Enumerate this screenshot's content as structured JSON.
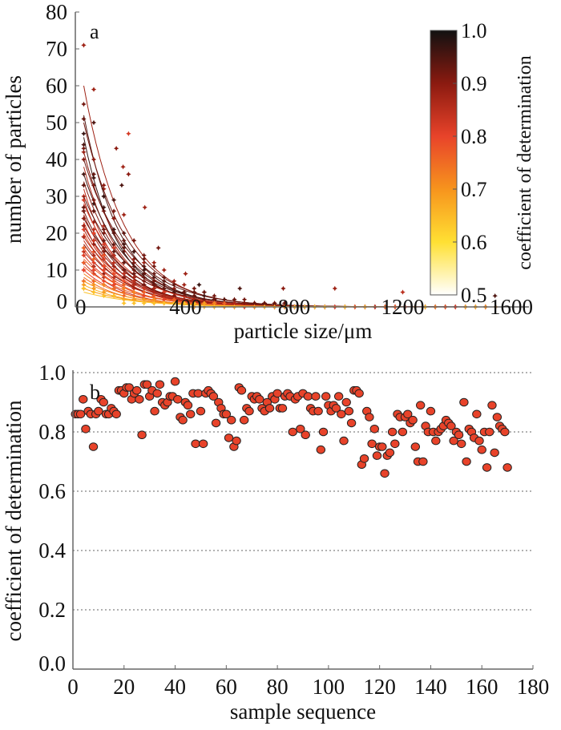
{
  "chart_data": [
    {
      "panel": "a",
      "type": "scatter",
      "xlabel": "particle size/μm",
      "ylabel": "number of particles",
      "xlim": [
        0,
        1600
      ],
      "ylim": [
        0,
        80
      ],
      "xticks": [
        "0",
        "400",
        "800",
        "1200",
        "1600"
      ],
      "yticks": [
        "0",
        "10",
        "20",
        "30",
        "40",
        "50",
        "60",
        "70",
        "80"
      ],
      "grid": false,
      "colorbar": {
        "label": "coefficient of determination",
        "range": [
          0.5,
          1.0
        ],
        "ticks": [
          "0.5",
          "0.6",
          "0.7",
          "0.8",
          "0.9",
          "1.0"
        ],
        "colors": [
          "#ffffff",
          "#ffe033",
          "#f7941d",
          "#e8432a",
          "#8b1a10",
          "#111111"
        ],
        "placement": "top-right"
      },
      "fitted_curves": [
        {
          "a": 60,
          "decay": 150,
          "r2": 0.88
        },
        {
          "a": 52,
          "decay": 140,
          "r2": 0.95
        },
        {
          "a": 50,
          "decay": 160,
          "r2": 0.92
        },
        {
          "a": 46,
          "decay": 130,
          "r2": 0.97
        },
        {
          "a": 42,
          "decay": 150,
          "r2": 0.9
        },
        {
          "a": 40,
          "decay": 170,
          "r2": 0.93
        },
        {
          "a": 38,
          "decay": 140,
          "r2": 0.86
        },
        {
          "a": 36,
          "decay": 160,
          "r2": 0.96
        },
        {
          "a": 34,
          "decay": 150,
          "r2": 0.91
        },
        {
          "a": 32,
          "decay": 130,
          "r2": 0.84
        },
        {
          "a": 30,
          "decay": 170,
          "r2": 0.94
        },
        {
          "a": 29,
          "decay": 140,
          "r2": 0.89
        },
        {
          "a": 28,
          "decay": 160,
          "r2": 0.82
        },
        {
          "a": 26,
          "decay": 150,
          "r2": 0.92
        },
        {
          "a": 25,
          "decay": 140,
          "r2": 0.87
        },
        {
          "a": 24,
          "decay": 180,
          "r2": 0.93
        },
        {
          "a": 23,
          "decay": 130,
          "r2": 0.8
        },
        {
          "a": 22,
          "decay": 160,
          "r2": 0.9
        },
        {
          "a": 21,
          "decay": 150,
          "r2": 0.85
        },
        {
          "a": 20,
          "decay": 140,
          "r2": 0.78
        },
        {
          "a": 19,
          "decay": 170,
          "r2": 0.88
        },
        {
          "a": 18,
          "decay": 150,
          "r2": 0.83
        },
        {
          "a": 17,
          "decay": 160,
          "r2": 0.91
        },
        {
          "a": 16,
          "decay": 140,
          "r2": 0.79
        },
        {
          "a": 15,
          "decay": 170,
          "r2": 0.86
        },
        {
          "a": 14,
          "decay": 150,
          "r2": 0.81
        },
        {
          "a": 13,
          "decay": 160,
          "r2": 0.76
        },
        {
          "a": 12,
          "decay": 140,
          "r2": 0.84
        },
        {
          "a": 11,
          "decay": 170,
          "r2": 0.77
        },
        {
          "a": 10,
          "decay": 150,
          "r2": 0.8
        },
        {
          "a": 9,
          "decay": 160,
          "r2": 0.72
        },
        {
          "a": 8,
          "decay": 150,
          "r2": 0.75
        },
        {
          "a": 7,
          "decay": 170,
          "r2": 0.7
        },
        {
          "a": 6,
          "decay": 160,
          "r2": 0.66
        },
        {
          "a": 5,
          "decay": 180,
          "r2": 0.69
        },
        {
          "a": 4,
          "decay": 200,
          "r2": 0.64
        }
      ],
      "highlighted_points": [
        {
          "x": 25,
          "y": 71,
          "r2": 0.88
        },
        {
          "x": 25,
          "y": 55,
          "r2": 0.92
        },
        {
          "x": 190,
          "y": 47,
          "r2": 0.82
        },
        {
          "x": 145,
          "y": 43,
          "r2": 0.9
        },
        {
          "x": 170,
          "y": 38,
          "r2": 0.88
        },
        {
          "x": 190,
          "y": 36,
          "r2": 0.9
        },
        {
          "x": 165,
          "y": 33,
          "r2": 0.95
        },
        {
          "x": 250,
          "y": 27,
          "r2": 0.88
        },
        {
          "x": 300,
          "y": 16,
          "r2": 0.92
        },
        {
          "x": 400,
          "y": 9,
          "r2": 0.88
        },
        {
          "x": 450,
          "y": 6,
          "r2": 0.97
        },
        {
          "x": 600,
          "y": 5,
          "r2": 0.95
        },
        {
          "x": 760,
          "y": 5,
          "r2": 0.9
        },
        {
          "x": 950,
          "y": 5,
          "r2": 0.88
        },
        {
          "x": 1200,
          "y": 4,
          "r2": 0.85
        },
        {
          "x": 1540,
          "y": 3,
          "r2": 0.95
        }
      ]
    },
    {
      "panel": "b",
      "type": "scatter",
      "xlabel": "sample sequence",
      "ylabel": "coefficient of determination",
      "xlim": [
        0,
        180
      ],
      "ylim": [
        0,
        1.0
      ],
      "xticks": [
        "0",
        "20",
        "40",
        "60",
        "80",
        "100",
        "120",
        "140",
        "160",
        "180"
      ],
      "yticks": [
        "0.0",
        "0.2",
        "0.4",
        "0.6",
        "0.8",
        "1.0"
      ],
      "grid": true,
      "marker_color": "#e8432a",
      "values": [
        0.86,
        0.86,
        0.86,
        0.91,
        0.81,
        0.87,
        0.86,
        0.75,
        0.86,
        0.87,
        0.91,
        0.9,
        0.86,
        0.86,
        0.88,
        0.87,
        0.86,
        0.94,
        0.94,
        0.93,
        0.95,
        0.95,
        0.91,
        0.93,
        0.94,
        0.91,
        0.79,
        0.96,
        0.96,
        0.92,
        0.94,
        0.87,
        0.93,
        0.96,
        0.9,
        0.89,
        0.9,
        0.92,
        0.92,
        0.97,
        0.91,
        0.85,
        0.84,
        0.9,
        0.89,
        0.86,
        0.93,
        0.76,
        0.93,
        0.87,
        0.76,
        0.93,
        0.94,
        0.93,
        0.92,
        0.83,
        0.9,
        0.88,
        0.86,
        0.86,
        0.78,
        0.84,
        0.75,
        0.77,
        0.95,
        0.94,
        0.84,
        0.88,
        0.87,
        0.92,
        0.91,
        0.92,
        0.91,
        0.88,
        0.87,
        0.9,
        0.88,
        0.92,
        0.91,
        0.93,
        0.88,
        0.88,
        0.92,
        0.93,
        0.92,
        0.8,
        0.91,
        0.92,
        0.81,
        0.93,
        0.79,
        0.92,
        0.88,
        0.87,
        0.92,
        0.87,
        0.74,
        0.8,
        0.92,
        0.89,
        0.87,
        0.89,
        0.88,
        0.92,
        0.86,
        0.77,
        0.9,
        0.87,
        0.83,
        0.94,
        0.94,
        0.93,
        0.69,
        0.71,
        0.87,
        0.85,
        0.76,
        0.81,
        0.72,
        0.75,
        0.75,
        0.66,
        0.72,
        0.73,
        0.8,
        0.76,
        0.86,
        0.85,
        0.8,
        0.85,
        0.86,
        0.83,
        0.84,
        0.75,
        0.7,
        0.89,
        0.7,
        0.82,
        0.8,
        0.87,
        0.8,
        0.77,
        0.8,
        0.81,
        0.82,
        0.84,
        0.83,
        0.82,
        0.77,
        0.8,
        0.79,
        0.76,
        0.9,
        0.7,
        0.81,
        0.8,
        0.78,
        0.86,
        0.77,
        0.74,
        0.8,
        0.68,
        0.8,
        0.89,
        0.73,
        0.85,
        0.82,
        0.81,
        0.8,
        0.68
      ]
    }
  ]
}
